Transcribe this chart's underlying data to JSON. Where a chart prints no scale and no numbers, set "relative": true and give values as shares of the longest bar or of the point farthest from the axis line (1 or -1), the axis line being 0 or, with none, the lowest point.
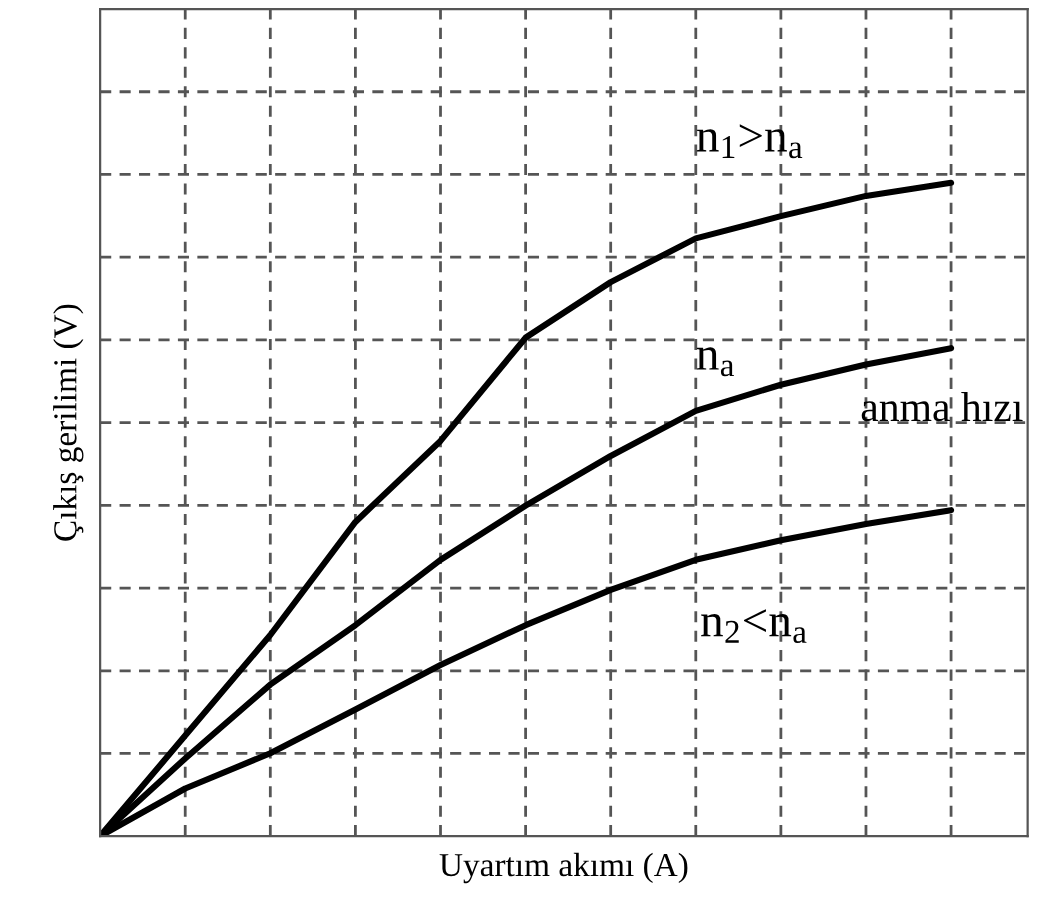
{
  "chart_data": {
    "type": "line",
    "relative": true,
    "xlabel": "Uyartım akımı (A)",
    "ylabel": "Çıkış gerilimi (V)",
    "categories": [
      null,
      null,
      null,
      null,
      null,
      null,
      null,
      null,
      null,
      null,
      null
    ],
    "series": [
      {
        "name": "n$_{1}$>n$_{a}$",
        "color": "#000000",
        "values": [
          0,
          0.154,
          0.308,
          0.481,
          0.605,
          0.763,
          0.848,
          0.915,
          0.949,
          0.98,
          1
        ]
      },
      {
        "name": "n$_{a}$",
        "color": "#000000",
        "values": [
          0,
          0.119,
          0.232,
          0.323,
          0.423,
          0.506,
          0.582,
          0.651,
          0.691,
          0.722,
          0.747
        ]
      },
      {
        "name": "n$_{2}$<n$_{a}$",
        "color": "#000000",
        "values": [
          0,
          0.073,
          0.127,
          0.194,
          0.262,
          0.323,
          0.377,
          0.423,
          0.453,
          0.478,
          0.499
        ]
      }
    ],
    "annotations": [
      "anma hızı"
    ],
    "grid": true,
    "legend": false,
    "line_style": "solid",
    "marker": "none"
  }
}
